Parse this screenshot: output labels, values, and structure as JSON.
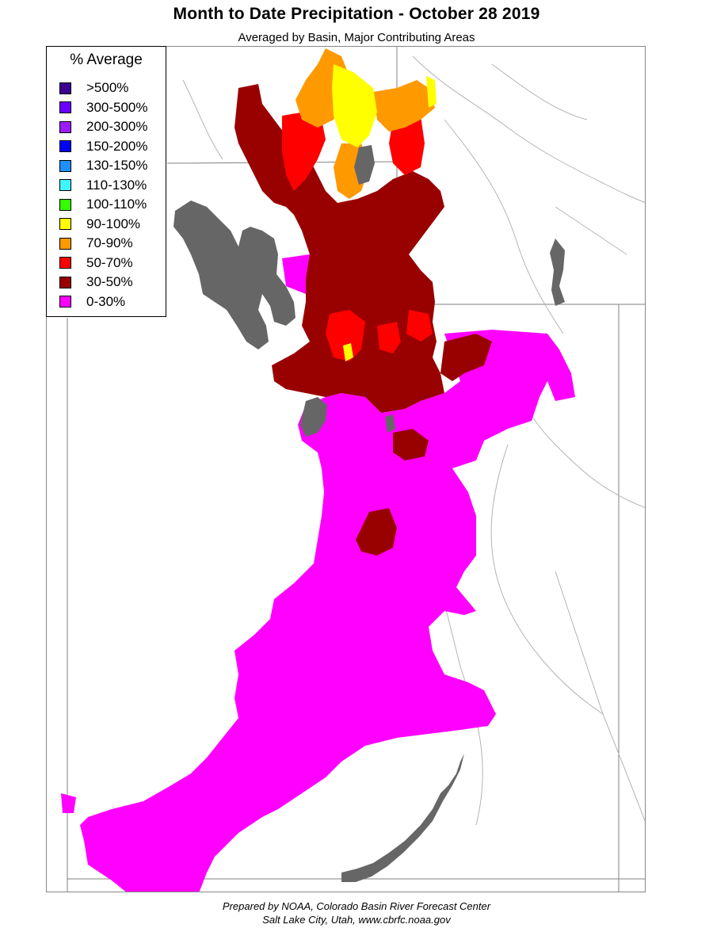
{
  "title": "Month to Date Precipitation - October 28 2019",
  "subtitle": "Averaged by Basin, Major Contributing Areas",
  "legend": {
    "title": "% Average",
    "items": [
      {
        "label": ">500%",
        "color": "#3d0091"
      },
      {
        "label": "300-500%",
        "color": "#6a00ff"
      },
      {
        "label": "200-300%",
        "color": "#9b1bff"
      },
      {
        "label": "150-200%",
        "color": "#0000ff"
      },
      {
        "label": "130-150%",
        "color": "#1e90ff"
      },
      {
        "label": "110-130%",
        "color": "#3ff5ff"
      },
      {
        "label": "100-110%",
        "color": "#33ff00"
      },
      {
        "label": "90-100%",
        "color": "#ffff00"
      },
      {
        "label": "70-90%",
        "color": "#ff9900"
      },
      {
        "label": "50-70%",
        "color": "#ff0000"
      },
      {
        "label": "30-50%",
        "color": "#990000"
      },
      {
        "label": "0-30%",
        "color": "#ff00ff"
      }
    ]
  },
  "map": {
    "colors": {
      "lake": "#666666",
      "boundary": "#808080",
      "river": "#b4b4b4"
    }
  },
  "credit": {
    "line1": "Prepared by NOAA, Colorado Basin River Forecast Center",
    "line2": "Salt Lake City, Utah, www.cbrfc.noaa.gov"
  }
}
